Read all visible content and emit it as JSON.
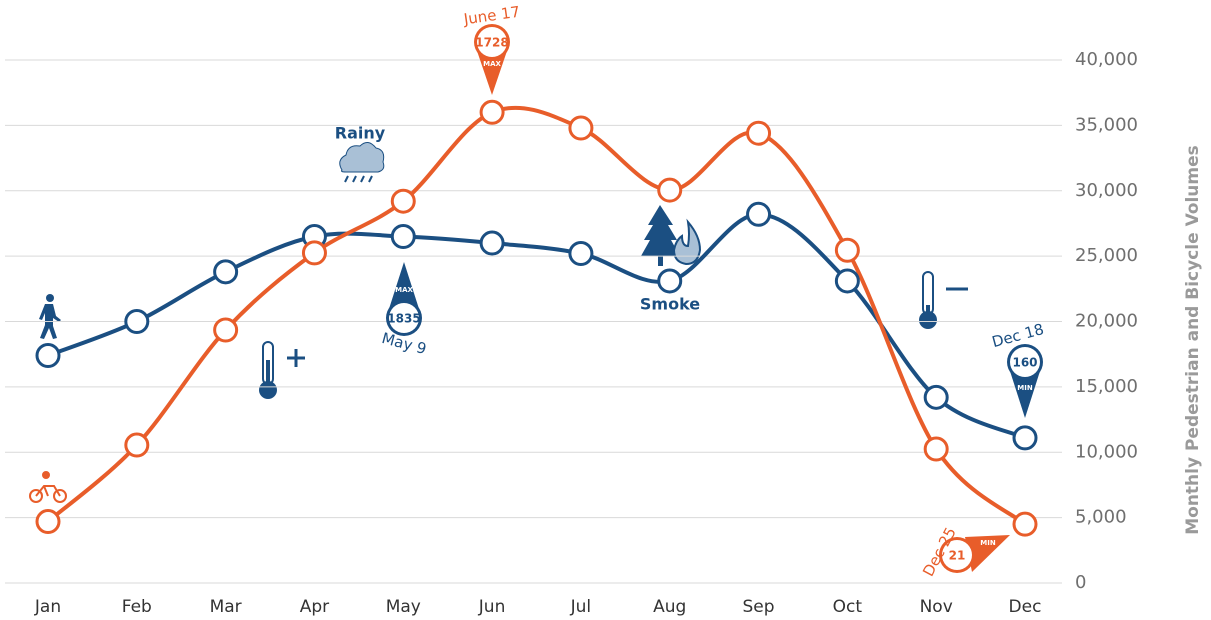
{
  "chart_data": {
    "type": "line",
    "y_label": "Monthly Pedestrian and Bicycle Volumes",
    "categories": [
      "Jan",
      "Feb",
      "Mar",
      "Apr",
      "May",
      "Jun",
      "Jul",
      "Aug",
      "Sep",
      "Oct",
      "Nov",
      "Dec"
    ],
    "series": [
      {
        "color": "#1b4f82",
        "values": [
          17400,
          20000,
          23800,
          26500,
          26500,
          26000,
          25200,
          23100,
          28200,
          23100,
          14200,
          11100
        ]
      },
      {
        "color": "#e85d2a",
        "values": [
          4700,
          10550,
          19350,
          25250,
          29200,
          36000,
          34800,
          30050,
          34400,
          25450,
          10250,
          4500
        ]
      }
    ],
    "ylim": [
      0,
      40000
    ],
    "yticks": [
      0,
      {
        "value": 5000,
        "label": "5,000"
      },
      {
        "value": 10000,
        "label": "10,000"
      },
      {
        "value": 15000,
        "label": "15,000"
      },
      {
        "value": 20000,
        "label": "20,000"
      },
      {
        "value": 25000,
        "label": "25,000"
      },
      {
        "value": 30000,
        "label": "30,000"
      },
      {
        "value": 35000,
        "label": "35,000"
      },
      {
        "value": 40000,
        "label": "40,000"
      }
    ],
    "grid": true,
    "annotations": [
      "Rainy",
      "Smoke"
    ],
    "markers": [
      {
        "label": "June 17",
        "count": 1728,
        "tag": "MAX",
        "color": "#e85d2a"
      },
      {
        "label": "May 9",
        "count": 1835,
        "tag": "MAX",
        "color": "#1b4f82"
      },
      {
        "label": "Dec 18",
        "count": 160,
        "tag": "MIN",
        "color": "#1b4f82"
      },
      {
        "label": "Dec 25",
        "count": 21,
        "tag": "MIN",
        "color": "#e85d2a"
      }
    ]
  }
}
